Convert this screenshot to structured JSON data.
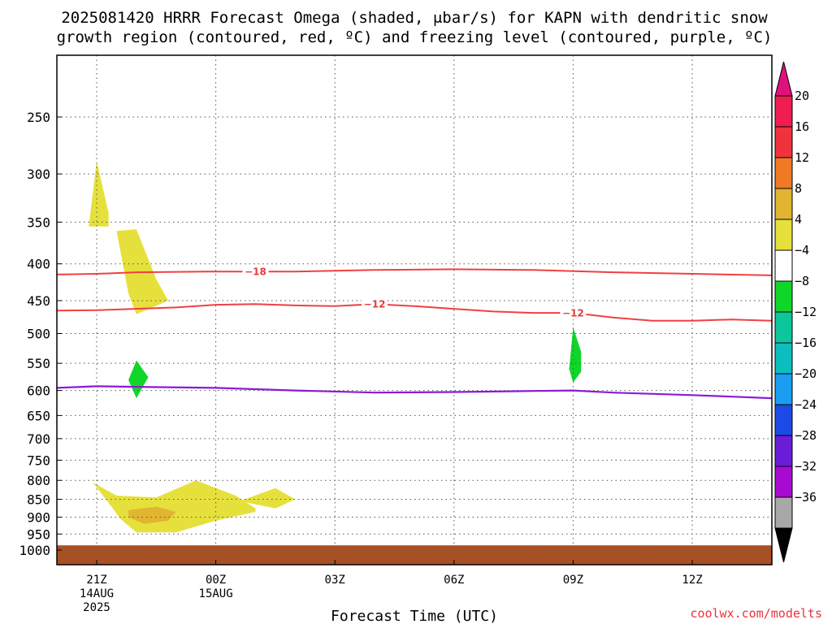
{
  "title_line1": "2025081420 HRRR Forecast Omega (shaded, μbar/s) for KAPN with dendritic snow",
  "title_line2": "growth region (contoured, red, ºC) and freezing level (contoured, purple, ºC)",
  "xlabel": "Forecast Time (UTC)",
  "credit": "coolwx.com/modelts",
  "chart_data": {
    "type": "time-height",
    "x_unit": "forecast hours from 2025-08-14 20Z",
    "x_range": [
      19,
      37
    ],
    "y_unit": "mb",
    "y_range": [
      200,
      1020
    ],
    "x_ticks": [
      {
        "hour": 21,
        "lines": [
          "21Z",
          "14AUG",
          "2025"
        ]
      },
      {
        "hour": 24,
        "lines": [
          "00Z",
          "15AUG"
        ]
      },
      {
        "hour": 27,
        "lines": [
          "03Z"
        ]
      },
      {
        "hour": 30,
        "lines": [
          "06Z"
        ]
      },
      {
        "hour": 33,
        "lines": [
          "09Z"
        ]
      },
      {
        "hour": 36,
        "lines": [
          "12Z"
        ]
      }
    ],
    "y_ticks": [
      250,
      300,
      350,
      400,
      450,
      500,
      550,
      600,
      650,
      700,
      750,
      800,
      850,
      900,
      950,
      1000
    ],
    "grid": true,
    "dgz_contours": [
      {
        "label": "-18",
        "color": "#f04040",
        "points": [
          [
            19,
            414
          ],
          [
            20,
            414
          ],
          [
            21,
            413
          ],
          [
            22,
            411
          ],
          [
            24,
            410
          ],
          [
            26,
            410
          ],
          [
            28,
            408
          ],
          [
            30,
            407
          ],
          [
            32,
            408
          ],
          [
            34,
            411
          ],
          [
            36,
            413
          ],
          [
            38,
            415
          ]
        ],
        "label_at": 25
      },
      {
        "label": "-12",
        "color": "#f04040",
        "points": [
          [
            19,
            465
          ],
          [
            21,
            464
          ],
          [
            23,
            460
          ],
          [
            24,
            456
          ],
          [
            25,
            455
          ],
          [
            26,
            457
          ],
          [
            27,
            458
          ],
          [
            28,
            455
          ],
          [
            29,
            458
          ],
          [
            30,
            462
          ],
          [
            31,
            466
          ],
          [
            32,
            468
          ],
          [
            33,
            468
          ],
          [
            34,
            475
          ],
          [
            35,
            480
          ],
          [
            36,
            480
          ],
          [
            37,
            478
          ],
          [
            38,
            480
          ]
        ],
        "label_at_list": [
          28,
          33
        ]
      }
    ],
    "freezing_level": {
      "color": "#8c1ad6",
      "points": [
        [
          19,
          601
        ],
        [
          20,
          595
        ],
        [
          21,
          592
        ],
        [
          22,
          593
        ],
        [
          24,
          595
        ],
        [
          26,
          600
        ],
        [
          28,
          604
        ],
        [
          30,
          603
        ],
        [
          32,
          601
        ],
        [
          33,
          600
        ],
        [
          34,
          604
        ],
        [
          36,
          609
        ],
        [
          37,
          612
        ],
        [
          38,
          615
        ]
      ]
    },
    "omega_areas": [
      {
        "color": "#e6e03c",
        "points": [
          [
            20.8,
            355
          ],
          [
            21.0,
            288
          ],
          [
            21.3,
            340
          ],
          [
            21.3,
            355
          ]
        ]
      },
      {
        "color": "#e6e03c",
        "points": [
          [
            21.5,
            360
          ],
          [
            22.0,
            358
          ],
          [
            22.5,
            420
          ],
          [
            22.8,
            450
          ],
          [
            22.0,
            470
          ],
          [
            21.8,
            440
          ]
        ]
      },
      {
        "color": "#11d62a",
        "points": [
          [
            21.8,
            580
          ],
          [
            22.0,
            545
          ],
          [
            22.3,
            575
          ],
          [
            22.0,
            615
          ]
        ]
      },
      {
        "color": "#11d62a",
        "points": [
          [
            32.9,
            560
          ],
          [
            33.0,
            490
          ],
          [
            33.2,
            530
          ],
          [
            33.2,
            565
          ],
          [
            33.0,
            585
          ]
        ]
      },
      {
        "color": "#e6e03c",
        "points": [
          [
            20.9,
            805
          ],
          [
            21.5,
            840
          ],
          [
            22.5,
            845
          ],
          [
            23.5,
            800
          ],
          [
            24.5,
            840
          ],
          [
            25.0,
            875
          ],
          [
            25.0,
            885
          ],
          [
            24.0,
            910
          ],
          [
            23.0,
            945
          ],
          [
            22.0,
            945
          ],
          [
            21.6,
            905
          ],
          [
            21.3,
            860
          ]
        ]
      },
      {
        "color": "#e2b530",
        "points": [
          [
            21.8,
            880
          ],
          [
            22.5,
            870
          ],
          [
            23.0,
            885
          ],
          [
            22.8,
            910
          ],
          [
            22.2,
            920
          ],
          [
            21.8,
            900
          ]
        ]
      },
      {
        "color": "#e6e03c",
        "points": [
          [
            24.6,
            855
          ],
          [
            25.5,
            820
          ],
          [
            26.0,
            850
          ],
          [
            25.5,
            875
          ]
        ]
      }
    ],
    "ground": {
      "color": "#a85025",
      "from_mb": 985
    }
  },
  "colorbar": {
    "labels": [
      "20",
      "16",
      "12",
      "8",
      "4",
      "-4",
      "-8",
      "-12",
      "-16",
      "-20",
      "-24",
      "-28",
      "-32",
      "-36"
    ],
    "colors": [
      "#f01c52",
      "#f0323c",
      "#f07a26",
      "#e2b530",
      "#e6e03c",
      "#ffffff",
      "#11d62a",
      "#0cc79c",
      "#0cbec0",
      "#1a9ef2",
      "#1b4ae6",
      "#6a1cd9",
      "#a90ad2",
      "#a8a8a8"
    ],
    "top_arrow": "#e0117c",
    "bottom_arrow": "#000000"
  }
}
